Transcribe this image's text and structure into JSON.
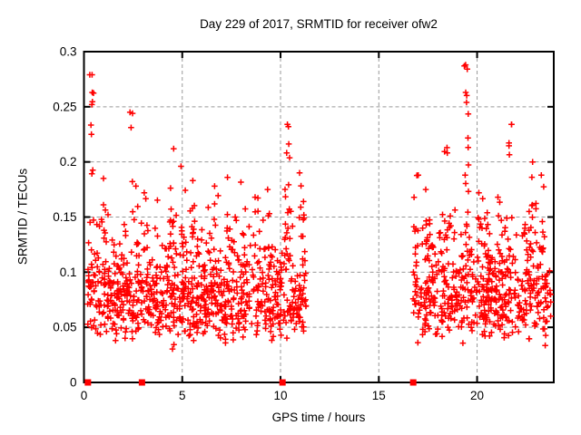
{
  "chart_data": {
    "type": "scatter",
    "title": "Day 229 of 2017, SRMTID for receiver ofw2",
    "xlabel": "GPS time / hours",
    "ylabel": "SRMTID / TECUs",
    "xlim": [
      0,
      23.9
    ],
    "ylim": [
      0,
      0.3
    ],
    "xticks": [
      {
        "v": 0,
        "label": "0"
      },
      {
        "v": 5,
        "label": "5"
      },
      {
        "v": 10,
        "label": "10"
      },
      {
        "v": 15,
        "label": "15"
      },
      {
        "v": 20,
        "label": "20"
      }
    ],
    "yticks": [
      {
        "v": 0,
        "label": "0"
      },
      {
        "v": 0.05,
        "label": "0.05"
      },
      {
        "v": 0.1,
        "label": "0.1"
      },
      {
        "v": 0.15,
        "label": "0.15"
      },
      {
        "v": 0.2,
        "label": "0.2"
      },
      {
        "v": 0.25,
        "label": "0.25"
      },
      {
        "v": 0.3,
        "label": "0.3"
      }
    ],
    "grid": {
      "on": true,
      "color": "#999999",
      "dash": [
        4,
        3
      ]
    },
    "legend": {
      "visible": false
    },
    "marker": {
      "glyph": "plus",
      "color": "#ff0000",
      "half_size": 3.3,
      "stroke_width": 1.5
    },
    "zero_markers": {
      "shape": "filled-square",
      "color": "#ff0000",
      "size": 7,
      "x": [
        0.2,
        2.95,
        10.1,
        16.75
      ]
    },
    "data_gaps": [
      [
        11.35,
        16.7
      ]
    ],
    "generation": {
      "seed": 20170229,
      "segments": [
        {
          "x_start": 0.12,
          "x_end": 11.3,
          "n": 880,
          "y_log_mean": -2.538,
          "y_log_sd": 0.32,
          "y_min": 0.022,
          "y_max": 0.185
        },
        {
          "x_start": 16.7,
          "x_end": 23.75,
          "n": 550,
          "y_log_mean": -2.501,
          "y_log_sd": 0.32,
          "y_min": 0.025,
          "y_max": 0.185
        }
      ],
      "spikes": [
        {
          "x": 0.4,
          "n": 9,
          "y_min": 0.12,
          "y_max": 0.279
        },
        {
          "x": 1.0,
          "n": 5,
          "y_min": 0.12,
          "y_max": 0.185
        },
        {
          "x": 2.47,
          "n": 4,
          "y_min": 0.13,
          "y_max": 0.245
        },
        {
          "x": 3.1,
          "n": 5,
          "y_min": 0.12,
          "y_max": 0.172
        },
        {
          "x": 4.45,
          "n": 12,
          "y_min": 0.12,
          "y_max": 0.212
        },
        {
          "x": 5.05,
          "n": 7,
          "y_min": 0.12,
          "y_max": 0.196
        },
        {
          "x": 5.6,
          "n": 5,
          "y_min": 0.12,
          "y_max": 0.183
        },
        {
          "x": 6.6,
          "n": 6,
          "y_min": 0.12,
          "y_max": 0.178
        },
        {
          "x": 7.4,
          "n": 6,
          "y_min": 0.12,
          "y_max": 0.186
        },
        {
          "x": 8.8,
          "n": 5,
          "y_min": 0.12,
          "y_max": 0.168
        },
        {
          "x": 9.3,
          "n": 5,
          "y_min": 0.12,
          "y_max": 0.175
        },
        {
          "x": 10.35,
          "n": 15,
          "y_min": 0.12,
          "y_max": 0.232
        },
        {
          "x": 11.1,
          "n": 6,
          "y_min": 0.12,
          "y_max": 0.19
        },
        {
          "x": 16.9,
          "n": 8,
          "y_min": 0.12,
          "y_max": 0.188
        },
        {
          "x": 17.5,
          "n": 5,
          "y_min": 0.12,
          "y_max": 0.175
        },
        {
          "x": 18.45,
          "n": 9,
          "y_min": 0.12,
          "y_max": 0.213
        },
        {
          "x": 19.5,
          "n": 15,
          "y_min": 0.12,
          "y_max": 0.288
        },
        {
          "x": 20.15,
          "n": 5,
          "y_min": 0.12,
          "y_max": 0.172
        },
        {
          "x": 21.05,
          "n": 5,
          "y_min": 0.12,
          "y_max": 0.168
        },
        {
          "x": 21.75,
          "n": 7,
          "y_min": 0.12,
          "y_max": 0.234
        },
        {
          "x": 22.9,
          "n": 6,
          "y_min": 0.12,
          "y_max": 0.2
        },
        {
          "x": 23.3,
          "n": 5,
          "y_min": 0.12,
          "y_max": 0.188
        }
      ],
      "outliers": [
        [
          0.41,
          0.279
        ],
        [
          0.42,
          0.263
        ],
        [
          0.4,
          0.252
        ],
        [
          2.47,
          0.244
        ],
        [
          10.35,
          0.234
        ],
        [
          19.35,
          0.287
        ],
        [
          19.42,
          0.263
        ],
        [
          19.46,
          0.254
        ],
        [
          21.75,
          0.234
        ]
      ]
    }
  }
}
